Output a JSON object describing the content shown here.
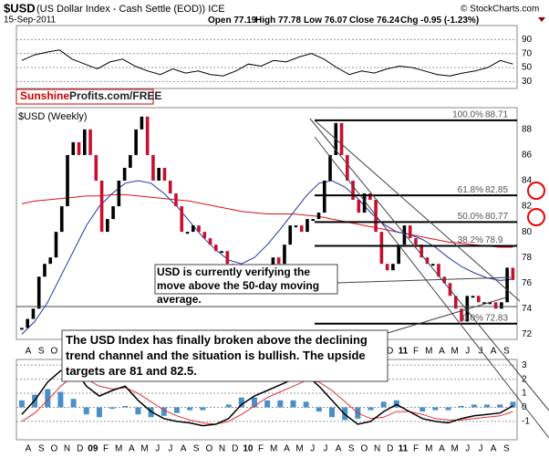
{
  "header": {
    "symbol": "$USD",
    "description": "(US Dollar Index - Cash Settle (EOD)) ICE",
    "date": "15-Sep-2011",
    "copyright": "© StockCharts.com",
    "quote": [
      {
        "label": "Open",
        "value": 77.19
      },
      {
        "label": "High",
        "value": 77.78
      },
      {
        "label": "Low",
        "value": 76.07
      },
      {
        "label": "Close",
        "value": 76.24
      },
      {
        "label": "Chg",
        "value": -0.95,
        "pct": "(-1.23%)"
      }
    ]
  },
  "banner": {
    "brand": "Sunshine",
    "rest": "Profits.com/FREE"
  },
  "chart_data": [
    {
      "type": "line",
      "panel": "rsi",
      "ylim": [
        20,
        110
      ],
      "yticks": [
        30,
        50,
        70,
        90
      ],
      "grid": true,
      "color": "#000",
      "values": [
        60,
        68,
        72,
        75,
        62,
        55,
        48,
        58,
        62,
        52,
        45,
        40,
        48,
        42,
        45,
        40,
        38,
        45,
        55,
        52,
        60,
        58,
        65,
        70,
        62,
        50,
        40,
        45,
        42,
        48,
        52,
        50,
        45,
        40,
        38,
        42,
        45,
        50,
        60,
        55
      ]
    },
    {
      "type": "candlestick",
      "panel": "price",
      "label": "$USD (Weekly)",
      "ylim": [
        71.6,
        89.7
      ],
      "yticks": [
        72,
        74,
        76,
        78,
        80,
        82,
        84,
        86,
        88
      ],
      "grid": false,
      "up_color": "#000",
      "down_color": "#c8102e",
      "values": [
        72.5,
        73.2,
        74,
        76.5,
        77.5,
        78,
        80,
        82,
        86,
        87,
        86,
        88,
        86,
        84,
        80,
        81,
        82,
        84,
        85,
        86,
        88,
        89,
        86,
        84,
        85,
        84,
        83,
        82,
        80,
        80,
        80.5,
        80,
        79.5,
        79,
        78.5,
        78.5,
        77.5,
        77,
        76.5,
        76,
        76,
        75.5,
        75.2,
        76.5,
        78,
        77.5,
        79,
        80.5,
        80.5,
        80,
        81,
        81,
        81.5,
        84,
        86,
        88.5,
        86,
        84,
        82.5,
        81.5,
        83,
        82.5,
        80,
        77.5,
        77,
        77.5,
        79,
        80.5,
        79.5,
        79,
        78,
        77.5,
        77.5,
        76.5,
        76,
        75,
        74,
        73,
        75,
        75,
        74.5,
        74.5,
        74.5,
        74,
        74.5,
        77.2,
        76.24
      ],
      "moving_averages": [
        {
          "color": "#d11",
          "values": [
            82.2,
            82.4,
            82.5,
            82.6,
            82.7,
            82.8,
            82.8,
            82.9,
            82.9,
            82.8,
            82.7,
            82.6,
            82.5,
            82.4,
            82.2,
            82,
            81.8,
            81.6,
            81.5,
            81.4,
            81.4,
            81.4,
            81.3,
            81.2,
            81,
            80.8,
            80.6,
            80.4,
            80.2,
            80,
            79.8,
            79.6,
            79.4,
            79.2,
            79.1,
            79,
            78.9,
            78.8,
            78.8
          ]
        },
        {
          "color": "#2233aa",
          "values": [
            72,
            73,
            74.5,
            76.5,
            78.5,
            80.5,
            82,
            83,
            83.8,
            84,
            83.8,
            83,
            82,
            80.8,
            79.6,
            78.6,
            77.8,
            77.5,
            78,
            79,
            80.2,
            81.5,
            82.8,
            83.8,
            84,
            83.5,
            82.6,
            81.5,
            80.6,
            80,
            79.8,
            79.4,
            78.8,
            78,
            77.3,
            76.8,
            76.4,
            76.2,
            76.3
          ]
        }
      ],
      "fibonacci": [
        {
          "label": "100.0%",
          "value": 88.71
        },
        {
          "label": "61.8%",
          "value": 82.85
        },
        {
          "label": "50.0%",
          "value": 80.77
        },
        {
          "label": "38.2%",
          "value": 78.9
        },
        {
          "label": "0.0%",
          "value": 72.83
        }
      ],
      "xlabels": [
        "A",
        "S",
        "O",
        "N",
        "D",
        "09",
        "F",
        "M",
        "A",
        "M",
        "J",
        "J",
        "A",
        "S",
        "O",
        "N",
        "D",
        "10",
        "F",
        "M",
        "A",
        "M",
        "J",
        "J",
        "A",
        "S",
        "O",
        "N",
        "D",
        "11",
        "F",
        "M",
        "A",
        "M",
        "J",
        "J",
        "A",
        "S"
      ],
      "annotations": [
        "USD is currently verifying the move above the 50-day moving average.",
        "The USD Index has finally broken above the declining trend channel and the situation is bullish. The upside targets are 81 and 82.5."
      ]
    },
    {
      "type": "macd",
      "panel": "macd",
      "ylim": [
        -2.3,
        3.4
      ],
      "yticks": [
        -1,
        0,
        1,
        2,
        3
      ],
      "grid": true,
      "macd": {
        "color": "#000",
        "values": [
          -0.5,
          0.5,
          1.8,
          2.6,
          2.8,
          1.5,
          0.8,
          1.2,
          1.5,
          0.5,
          -0.3,
          -0.8,
          -1,
          -1.1,
          -1.3,
          -1.2,
          -0.8,
          0.2,
          0.8,
          1.2,
          1.6,
          2,
          2.3,
          1.5,
          0.5,
          -0.5,
          -1.2,
          -1,
          -0.3,
          0.2,
          -0.3,
          -0.8,
          -1,
          -1.1,
          -0.8,
          -0.6,
          -0.5,
          -0.4,
          0.1
        ]
      },
      "signal": {
        "color": "#e03030",
        "values": [
          -1,
          -0.4,
          0.5,
          1.5,
          2.2,
          2,
          1.5,
          1.3,
          1.4,
          1,
          0.4,
          -0.2,
          -0.6,
          -0.9,
          -1.1,
          -1.2,
          -1,
          -0.5,
          0.1,
          0.7,
          1.1,
          1.5,
          1.9,
          1.8,
          1.2,
          0.4,
          -0.4,
          -0.8,
          -0.7,
          -0.3,
          -0.3,
          -0.5,
          -0.8,
          -0.9,
          -0.9,
          -0.8,
          -0.7,
          -0.6,
          -0.3
        ]
      },
      "histogram": {
        "color": "#4a90c8",
        "values": [
          0.5,
          0.9,
          1.3,
          1.1,
          0.6,
          -0.5,
          -0.7,
          -0.1,
          0.1,
          -0.5,
          -0.7,
          -0.6,
          -0.4,
          -0.2,
          -0.2,
          0,
          0.2,
          0.7,
          0.7,
          0.5,
          0.5,
          0.5,
          0.4,
          -0.3,
          -0.7,
          -0.9,
          -0.8,
          -0.2,
          0.4,
          0.5,
          0,
          -0.3,
          -0.2,
          -0.2,
          0.1,
          0.2,
          0.2,
          0.2,
          0.4
        ]
      }
    }
  ]
}
